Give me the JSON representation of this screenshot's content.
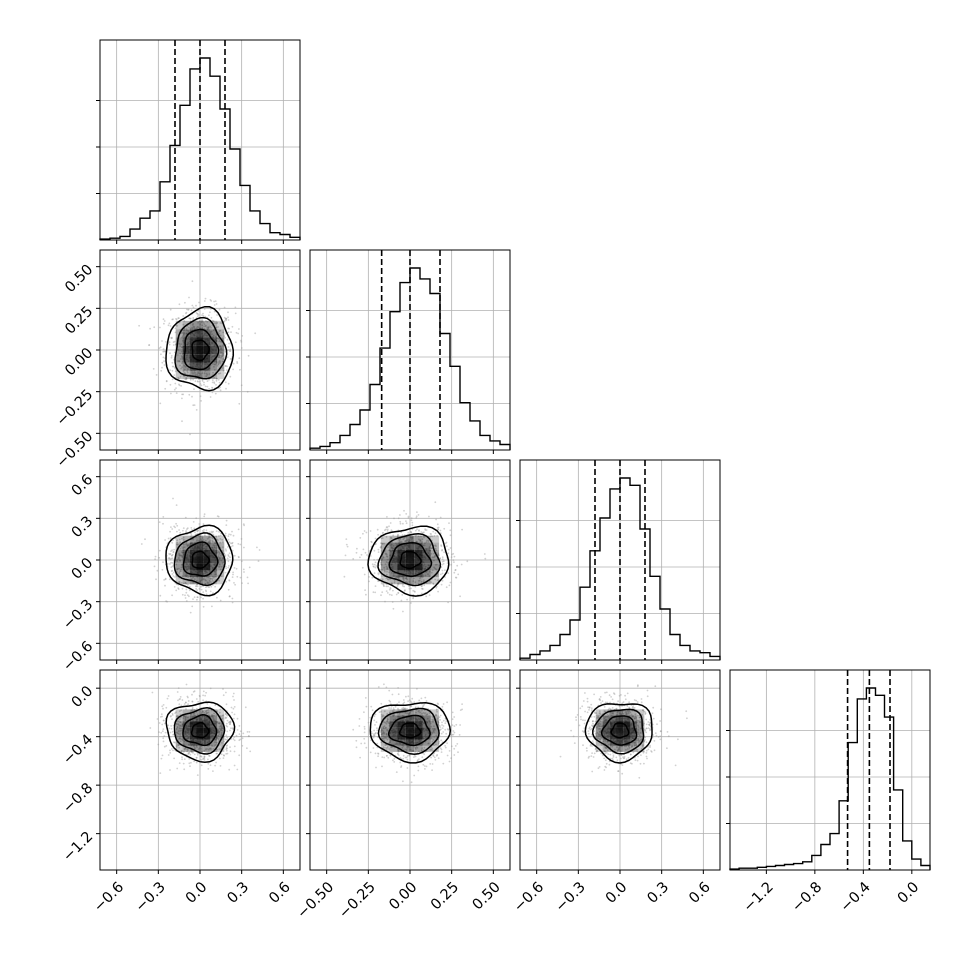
{
  "chart_data": {
    "type": "corner",
    "grid": true,
    "colors": {
      "line": "#000000",
      "grid": "#b0b0b0",
      "density": "#000000",
      "scatter": "#9a9a9a"
    },
    "parameters": [
      {
        "range": [
          -0.72,
          0.72
        ],
        "ticks": [
          -0.6,
          -0.3,
          0.0,
          0.3,
          0.6
        ],
        "tick_labels": [
          "−0.6",
          "−0.3",
          "0.0",
          "0.3",
          "0.6"
        ],
        "quantiles": [
          -0.18,
          0.0,
          0.18
        ],
        "mean": 0.0,
        "sigma": 0.12
      },
      {
        "range": [
          -0.6,
          0.6
        ],
        "ticks": [
          -0.5,
          -0.25,
          0.0,
          0.25,
          0.5
        ],
        "tick_labels": [
          "−0.50",
          "−0.25",
          "0.00",
          "0.25",
          "0.50"
        ],
        "quantiles": [
          -0.17,
          0.0,
          0.18
        ],
        "mean": 0.0,
        "sigma": 0.12
      },
      {
        "range": [
          -0.72,
          0.72
        ],
        "ticks": [
          -0.6,
          -0.3,
          0.0,
          0.3,
          0.6
        ],
        "tick_labels": [
          "−0.6",
          "−0.3",
          "0.0",
          "0.3",
          "0.6"
        ],
        "quantiles": [
          -0.18,
          0.0,
          0.18
        ],
        "mean": 0.0,
        "sigma": 0.12
      },
      {
        "range": [
          -1.5,
          0.15
        ],
        "ticks": [
          -1.2,
          -0.8,
          -0.4,
          0.0
        ],
        "tick_labels": [
          "−1.2",
          "−0.8",
          "−0.4",
          "0.0"
        ],
        "quantiles": [
          -0.53,
          -0.35,
          -0.18
        ],
        "mean": -0.35,
        "sigma": 0.12
      }
    ],
    "histograms": [
      [
        0.005,
        0.01,
        0.02,
        0.06,
        0.12,
        0.16,
        0.32,
        0.52,
        0.74,
        0.94,
        1.0,
        0.9,
        0.72,
        0.5,
        0.3,
        0.16,
        0.09,
        0.04,
        0.03,
        0.015
      ],
      [
        0.01,
        0.02,
        0.04,
        0.08,
        0.14,
        0.22,
        0.36,
        0.56,
        0.76,
        0.92,
        1.0,
        0.94,
        0.86,
        0.64,
        0.46,
        0.26,
        0.16,
        0.08,
        0.05,
        0.03
      ],
      [
        0.01,
        0.03,
        0.05,
        0.08,
        0.14,
        0.22,
        0.4,
        0.6,
        0.78,
        0.94,
        1.0,
        0.96,
        0.72,
        0.46,
        0.28,
        0.14,
        0.08,
        0.05,
        0.04,
        0.02
      ],
      [
        0.005,
        0.01,
        0.01,
        0.015,
        0.02,
        0.025,
        0.03,
        0.035,
        0.045,
        0.08,
        0.14,
        0.2,
        0.38,
        0.7,
        0.94,
        1.0,
        0.96,
        0.84,
        0.44,
        0.16,
        0.06,
        0.025
      ]
    ],
    "contour_levels": [
      0.5,
      1.0,
      1.5,
      2.0
    ]
  }
}
